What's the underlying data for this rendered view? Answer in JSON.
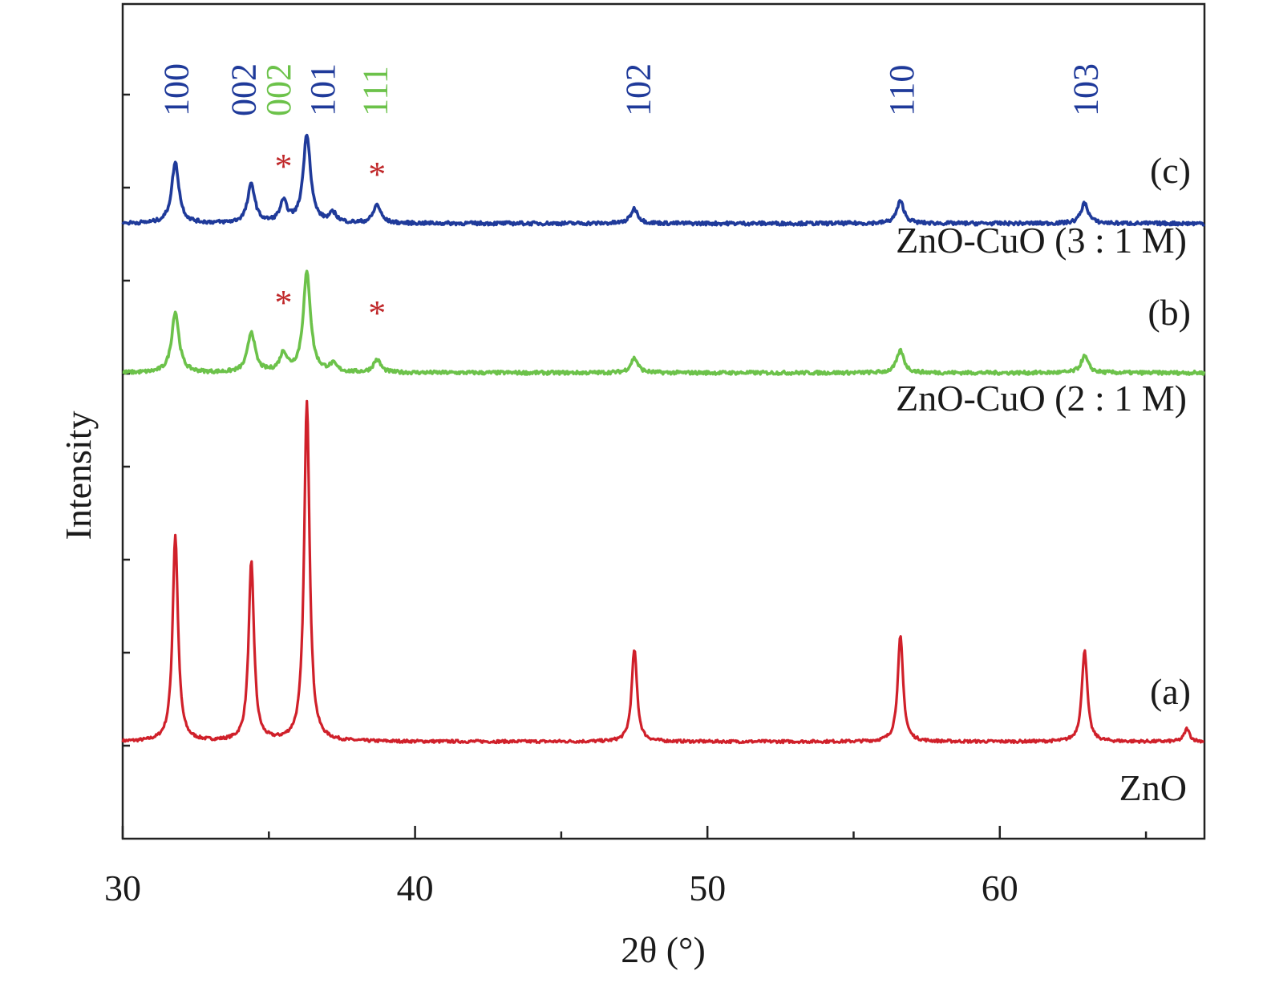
{
  "chart_data": {
    "type": "line",
    "title": "",
    "xlabel": "2θ (°)",
    "ylabel": "Intensity",
    "xlim": [
      30,
      67
    ],
    "x_ticks": [
      30,
      40,
      50,
      60
    ],
    "x_tick_labels": [
      "30",
      "40",
      "50",
      "60"
    ],
    "y_tick_labels_shown": false,
    "grid": false,
    "colors": {
      "zno": "#d0202a",
      "zno_cuo_2_1": "#6cc24a",
      "zno_cuo_3_1": "#1f3a9a",
      "star": "#c0282a",
      "cuo_label": "#6cc24a",
      "zno_label": "#1f3a9a"
    },
    "series": [
      {
        "name": "ZnO",
        "tag": "(a)",
        "color": "#d0202a",
        "baseline": 0,
        "peaks": [
          {
            "x": 31.8,
            "height": 112
          },
          {
            "x": 34.4,
            "height": 97
          },
          {
            "x": 36.3,
            "height": 185
          },
          {
            "x": 47.5,
            "height": 50
          },
          {
            "x": 56.6,
            "height": 57
          },
          {
            "x": 62.9,
            "height": 50
          },
          {
            "x": 66.4,
            "height": 7
          }
        ]
      },
      {
        "name": "ZnO-CuO (2 : 1 M)",
        "tag": "(b)",
        "color": "#6cc24a",
        "baseline": 200,
        "peaks": [
          {
            "x": 31.8,
            "height": 33
          },
          {
            "x": 34.4,
            "height": 22
          },
          {
            "x": 35.5,
            "height": 10
          },
          {
            "x": 36.3,
            "height": 54
          },
          {
            "x": 37.2,
            "height": 4
          },
          {
            "x": 38.7,
            "height": 7
          },
          {
            "x": 47.5,
            "height": 8
          },
          {
            "x": 56.6,
            "height": 12
          },
          {
            "x": 62.9,
            "height": 9
          }
        ]
      },
      {
        "name": "ZnO-CuO (3 : 1 M)",
        "tag": "(c)",
        "color": "#1f3a9a",
        "baseline": 281,
        "peaks": [
          {
            "x": 31.8,
            "height": 33
          },
          {
            "x": 34.4,
            "height": 21
          },
          {
            "x": 35.5,
            "height": 11
          },
          {
            "x": 36.3,
            "height": 48
          },
          {
            "x": 37.2,
            "height": 5
          },
          {
            "x": 38.7,
            "height": 10
          },
          {
            "x": 47.5,
            "height": 8
          },
          {
            "x": 56.6,
            "height": 12
          },
          {
            "x": 62.9,
            "height": 11
          }
        ]
      }
    ],
    "peak_labels": [
      {
        "text": "100",
        "x": 31.8,
        "phase": "ZnO"
      },
      {
        "text": "002",
        "x": 34.1,
        "phase": "ZnO"
      },
      {
        "text": "002",
        "x": 35.3,
        "phase": "CuO"
      },
      {
        "text": "101",
        "x": 36.8,
        "phase": "ZnO"
      },
      {
        "text": "111",
        "x": 38.6,
        "phase": "CuO"
      },
      {
        "text": "102",
        "x": 47.6,
        "phase": "ZnO"
      },
      {
        "text": "110",
        "x": 56.6,
        "phase": "ZnO"
      },
      {
        "text": "103",
        "x": 62.9,
        "phase": "ZnO"
      }
    ],
    "markers": {
      "symbol": "*",
      "positions_x": [
        35.5,
        38.7
      ],
      "on_series": [
        "ZnO-CuO (2 : 1 M)",
        "ZnO-CuO (3 : 1 M)"
      ]
    }
  }
}
